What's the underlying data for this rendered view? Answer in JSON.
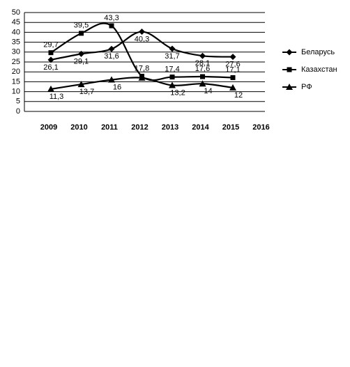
{
  "chart_data": {
    "type": "line",
    "categories": [
      "2009",
      "2010",
      "2011",
      "2012",
      "2013",
      "2014",
      "2015",
      "2016"
    ],
    "series": [
      {
        "name": "Беларусь",
        "color": "#000000",
        "marker": "diamond",
        "values": [
          26.1,
          29.1,
          31.6,
          40.3,
          31.7,
          28.1,
          27.6,
          null
        ],
        "value_labels": [
          "26,1",
          "29,1",
          "31,6",
          "40,3",
          "31,7",
          "28,1",
          "27,6",
          null
        ]
      },
      {
        "name": "Казахстан",
        "color": "#000000",
        "marker": "square",
        "values": [
          29.7,
          39.5,
          43.3,
          17.8,
          17.4,
          17.6,
          17.1,
          null
        ],
        "value_labels": [
          "29,7",
          "39,5",
          "43,3",
          "17,8",
          "17,4",
          "17,6",
          "17,1",
          null
        ]
      },
      {
        "name": "РФ",
        "color": "#000000",
        "marker": "triangle",
        "values": [
          11.3,
          13.7,
          16,
          17,
          13.2,
          14,
          12,
          null
        ],
        "value_labels": [
          "11,3",
          "13,7",
          "16",
          null,
          "13,2",
          "14",
          "12",
          null
        ]
      }
    ],
    "ylim": [
      0,
      50
    ],
    "yticks": [
      0,
      5,
      10,
      15,
      20,
      25,
      30,
      35,
      40,
      45,
      50
    ],
    "grid": true,
    "legend": "right"
  }
}
